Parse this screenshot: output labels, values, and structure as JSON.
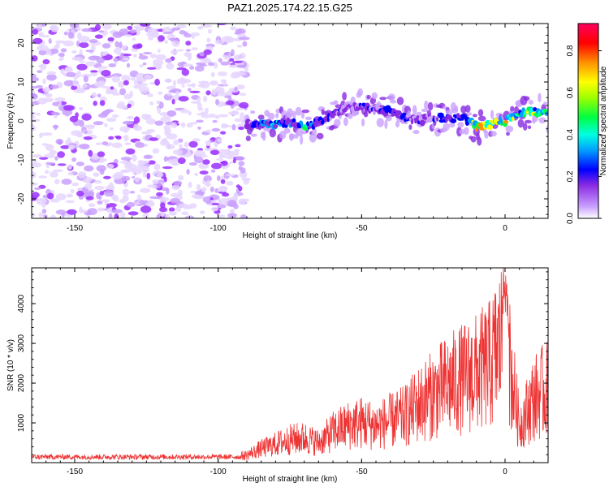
{
  "figure_title": "PAZ1.2025.174.22.15.G25",
  "chart_data": [
    {
      "type": "heatmap",
      "title": "PAZ1.2025.174.22.15.G25",
      "xlabel": "Height of straight line (km)",
      "ylabel": "Frequency (Hz)",
      "xlim": [
        -165,
        15
      ],
      "ylim": [
        -25,
        25
      ],
      "xticks": [
        -150,
        -100,
        -50,
        0
      ],
      "yticks": [
        -20,
        -10,
        0,
        10,
        20
      ],
      "x_tick_labels": [
        "-150",
        "-100",
        "-50",
        "0"
      ],
      "y_tick_labels": [
        "-20",
        "-10",
        "0",
        "10",
        "20"
      ],
      "colorbar": {
        "label": "Normalized spectral amplitude",
        "range": [
          0,
          0.93
        ],
        "ticks": [
          0.0,
          0.2,
          0.4,
          0.6,
          0.8
        ],
        "tick_labels": [
          "0.0",
          "0.2",
          "0.4",
          "0.6",
          "0.8"
        ]
      },
      "signal_track": [
        {
          "x": -90,
          "y": -1.0,
          "amp": 0.35
        },
        {
          "x": -85,
          "y": -0.5,
          "amp": 0.45
        },
        {
          "x": -80,
          "y": -1.0,
          "amp": 0.55
        },
        {
          "x": -75,
          "y": -0.3,
          "amp": 0.45
        },
        {
          "x": -70,
          "y": -1.3,
          "amp": 0.6
        },
        {
          "x": -65,
          "y": -0.5,
          "amp": 0.4
        },
        {
          "x": -60,
          "y": 1.5,
          "amp": 0.4
        },
        {
          "x": -55,
          "y": 3.8,
          "amp": 0.3
        },
        {
          "x": -50,
          "y": 3.5,
          "amp": 0.35
        },
        {
          "x": -45,
          "y": 3.0,
          "amp": 0.35
        },
        {
          "x": -40,
          "y": 2.5,
          "amp": 0.4
        },
        {
          "x": -35,
          "y": 1.0,
          "amp": 0.4
        },
        {
          "x": -30,
          "y": 0.0,
          "amp": 0.35
        },
        {
          "x": -25,
          "y": 1.0,
          "amp": 0.35
        },
        {
          "x": -20,
          "y": 0.5,
          "amp": 0.4
        },
        {
          "x": -15,
          "y": 1.0,
          "amp": 0.45
        },
        {
          "x": -10,
          "y": -1.5,
          "amp": 0.75
        },
        {
          "x": -5,
          "y": -1.0,
          "amp": 0.85
        },
        {
          "x": 0,
          "y": 0.0,
          "amp": 0.7
        },
        {
          "x": 5,
          "y": 2.0,
          "amp": 0.6
        },
        {
          "x": 10,
          "y": 2.5,
          "amp": 0.65
        },
        {
          "x": 15,
          "y": 1.5,
          "amp": 0.55
        }
      ],
      "noise_region": {
        "x": [
          -165,
          -90
        ],
        "y": [
          -25,
          25
        ],
        "amp": 0.15
      }
    },
    {
      "type": "line",
      "xlabel": "Height of straight line (km)",
      "ylabel": "SNR (10 * v/v)",
      "xlim": [
        -165,
        15
      ],
      "ylim": [
        0,
        4900
      ],
      "xticks": [
        -150,
        -100,
        -50,
        0
      ],
      "yticks": [
        1000,
        2000,
        3000,
        4000
      ],
      "x_tick_labels": [
        "-150",
        "-100",
        "-50",
        "0"
      ],
      "y_tick_labels": [
        "1000",
        "2000",
        "3000",
        "4000"
      ],
      "color": "#ee3333",
      "series": [
        {
          "x": [
            -165,
            -160,
            -155,
            -150,
            -145,
            -140,
            -135,
            -130,
            -125,
            -120,
            -115,
            -110,
            -105,
            -100,
            -95,
            -90,
            -85,
            -80,
            -75,
            -70,
            -65,
            -60,
            -55,
            -50,
            -45,
            -40,
            -35,
            -30,
            -25,
            -20,
            -15,
            -10,
            -5,
            0,
            5,
            10,
            15
          ],
          "values": [
            150,
            140,
            160,
            150,
            145,
            150,
            140,
            150,
            145,
            150,
            150,
            145,
            150,
            150,
            150,
            250,
            450,
            600,
            750,
            800,
            650,
            1000,
            1200,
            1300,
            1200,
            1350,
            1500,
            1900,
            2200,
            2500,
            2700,
            2900,
            3200,
            4200,
            1200,
            2100,
            2400
          ]
        }
      ]
    }
  ]
}
